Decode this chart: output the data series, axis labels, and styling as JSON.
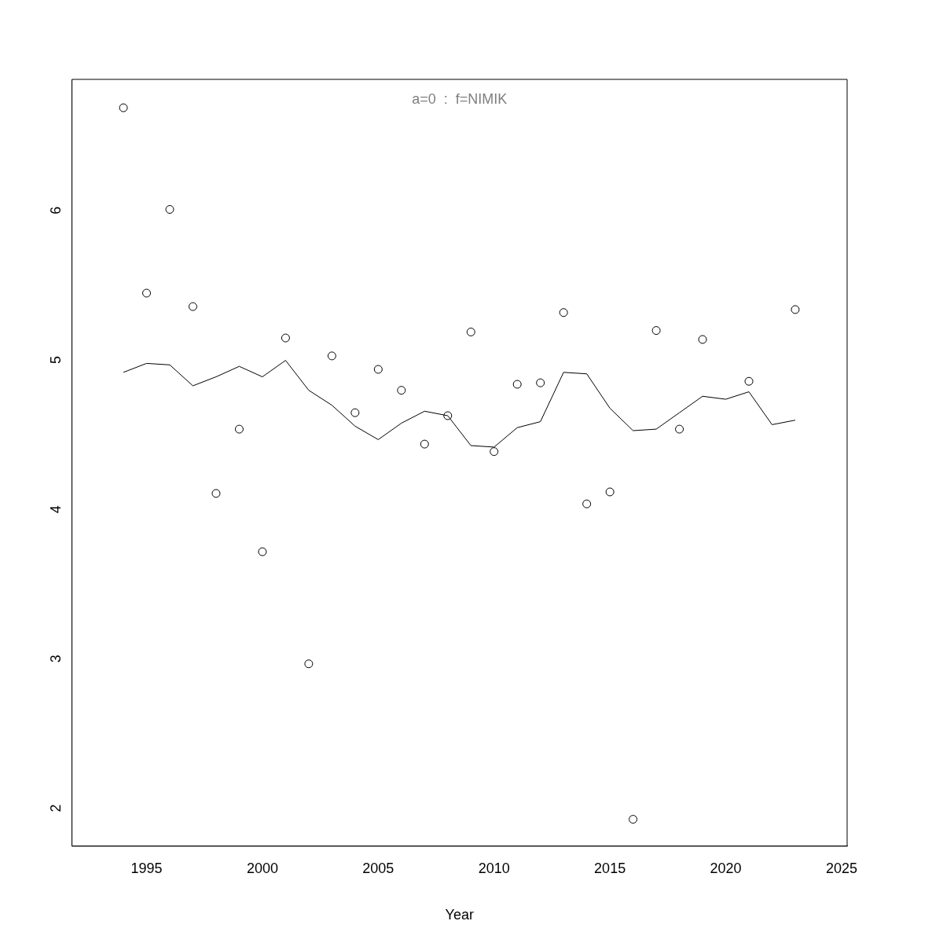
{
  "chart_data": {
    "type": "scatter",
    "title": "a=0  :  f=NIMIK",
    "xlabel": "Year",
    "xlim": [
      1991.78,
      2025.24
    ],
    "ylim": [
      1.72,
      6.85
    ],
    "xticks": [
      1995,
      2000,
      2005,
      2010,
      2015,
      2020,
      2025
    ],
    "yticks": [
      2,
      3,
      4,
      5,
      6
    ],
    "grid": false,
    "legend": false,
    "series": [
      {
        "color": "#000000",
        "marker": "circle",
        "x": [
          1994,
          1995,
          1996,
          1997,
          1998,
          1999,
          2000,
          2001,
          2002,
          2003,
          2004,
          2005,
          2006,
          2007,
          2008,
          2009,
          2010,
          2011,
          2012,
          2013,
          2014,
          2015,
          2016,
          2017,
          2018,
          2019,
          2021,
          2023
        ],
        "values": [
          6.66,
          5.42,
          5.98,
          5.33,
          4.08,
          4.51,
          3.69,
          5.12,
          2.94,
          5.0,
          4.62,
          4.91,
          4.77,
          4.41,
          4.6,
          5.16,
          4.36,
          4.81,
          4.82,
          5.29,
          4.01,
          4.09,
          1.9,
          5.17,
          4.51,
          5.11,
          4.83,
          5.31
        ]
      },
      {
        "type": "line",
        "color": "#000000",
        "marker": "none",
        "line_style": "solid",
        "x": [
          1994,
          1995,
          1996,
          1997,
          1998,
          1999,
          2000,
          2001,
          2002,
          2003,
          2004,
          2005,
          2006,
          2007,
          2008,
          2009,
          2010,
          2011,
          2012,
          2013,
          2014,
          2015,
          2016,
          2017,
          2018,
          2019,
          2020,
          2021,
          2022,
          2023
        ],
        "values": [
          4.89,
          4.95,
          4.94,
          4.8,
          4.86,
          4.93,
          4.86,
          4.97,
          4.77,
          4.67,
          4.53,
          4.44,
          4.55,
          4.63,
          4.6,
          4.4,
          4.39,
          4.52,
          4.56,
          4.89,
          4.88,
          4.65,
          4.5,
          4.51,
          4.62,
          4.73,
          4.71,
          4.76,
          4.54,
          4.57
        ]
      }
    ]
  }
}
